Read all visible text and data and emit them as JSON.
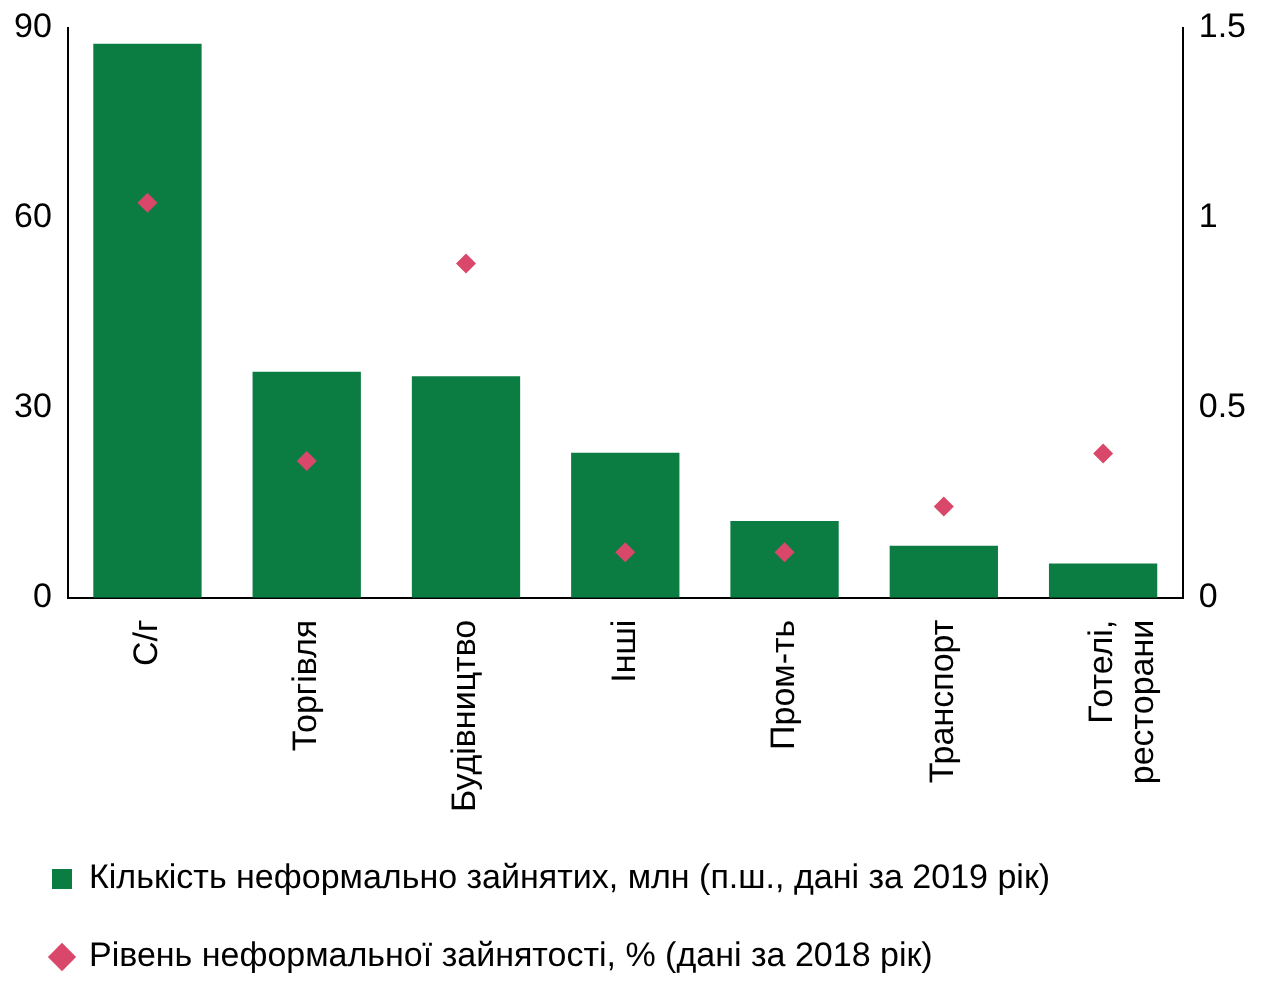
{
  "chart_data": {
    "type": "bar",
    "categories": [
      "С/г",
      "Торгівля",
      "Будівництво",
      "Інші",
      "Пром-ть",
      "Транспорт",
      "Готелі,\nресторани"
    ],
    "series": [
      {
        "name": "Кількість неформально зайнятих, млн (п.ш., дані за 2019 рік)",
        "color": "#0b7d43",
        "values": [
          87.5,
          35.7,
          35,
          22.9,
          12.1,
          8.2,
          5.4
        ]
      },
      {
        "name": "Рівень неформальної зайнятості, % (дані за 2018 рік)",
        "type": "scatter",
        "axis": "y2",
        "color": "#d9476a",
        "values": [
          1.04,
          0.36,
          0.88,
          0.12,
          0.12,
          0.24,
          0.38
        ]
      }
    ],
    "ylim": [
      0,
      90
    ],
    "yticks": [
      0,
      30,
      60,
      90
    ],
    "y2lim": [
      0,
      1.5
    ],
    "y2ticks": [
      0,
      0.5,
      1,
      1.5
    ],
    "grid": false,
    "legend": "bottom",
    "marker": "diamond"
  }
}
